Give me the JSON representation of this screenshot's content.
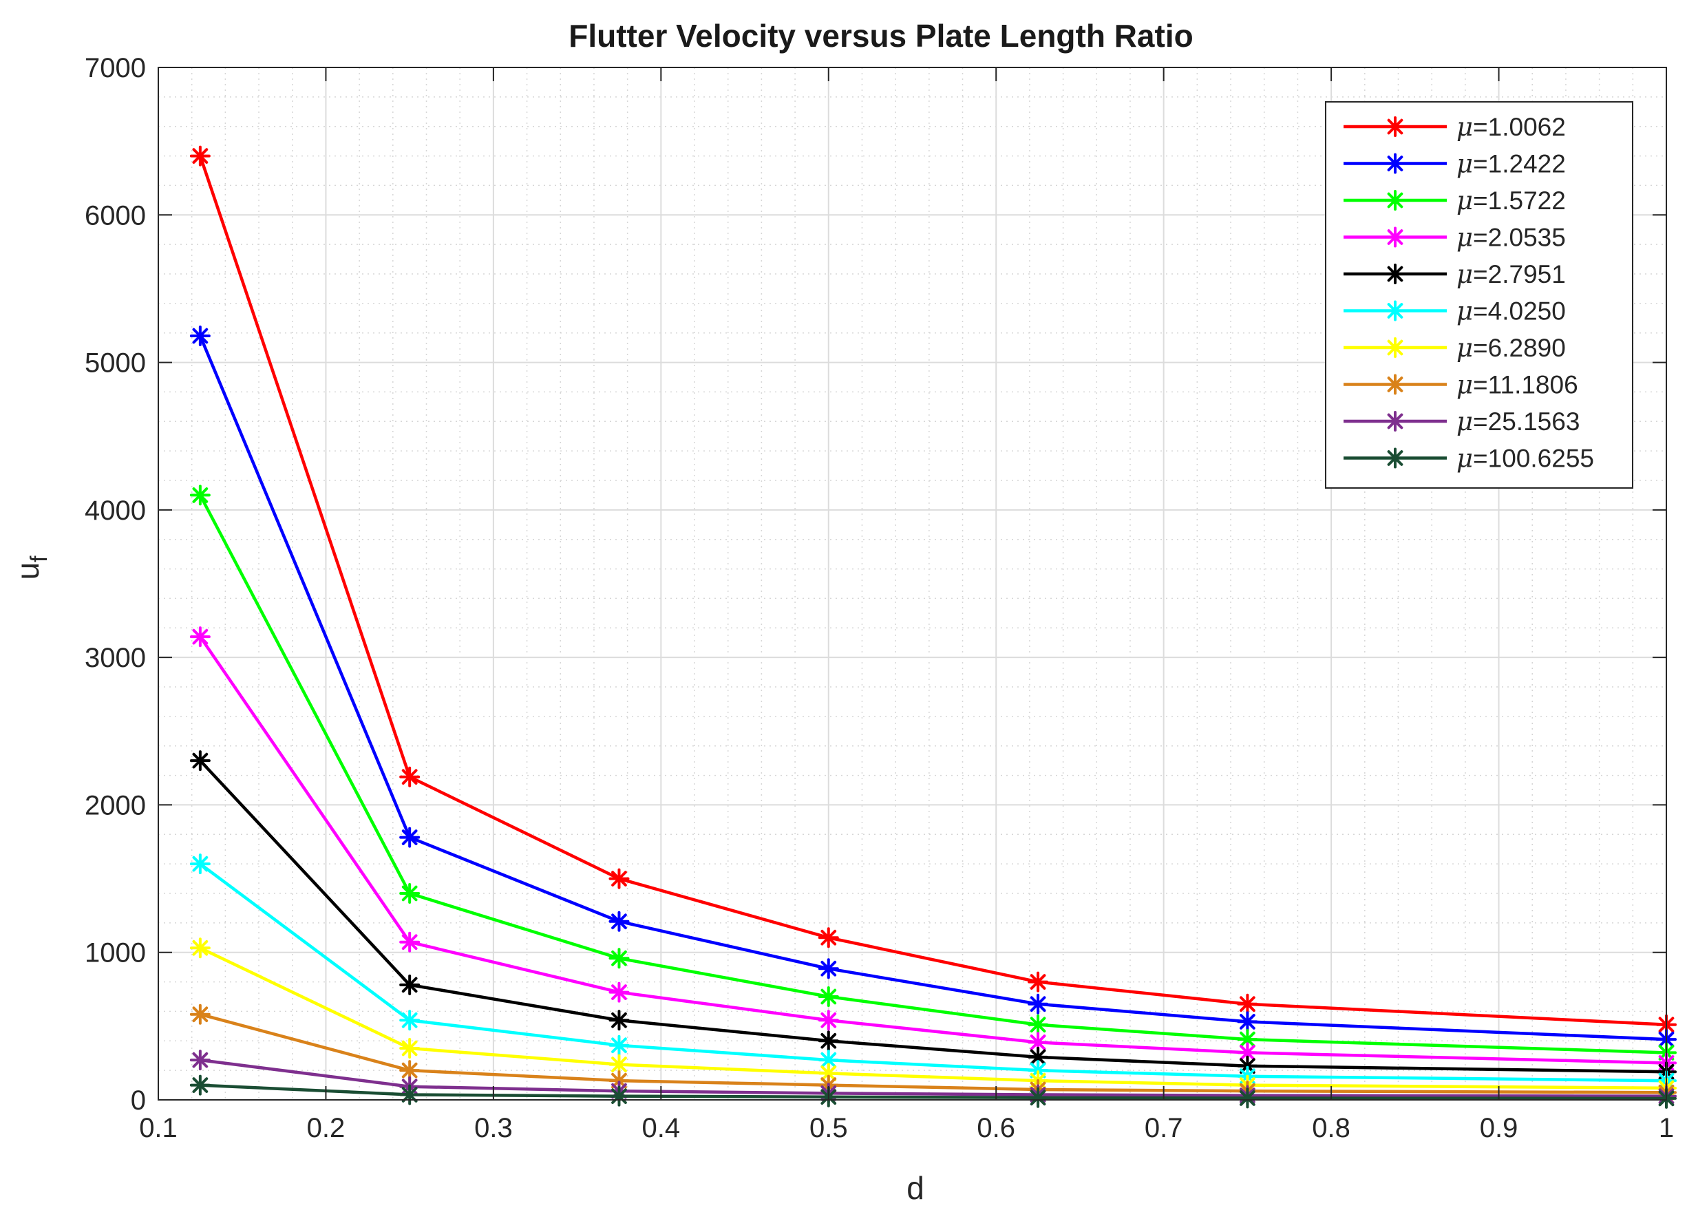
{
  "chart_data": {
    "type": "line",
    "title": "Flutter Velocity versus Plate Length Ratio",
    "xlabel": "d",
    "ylabel": "u",
    "ylabel_subscript": "f",
    "xlim": [
      0.1,
      1
    ],
    "ylim": [
      0,
      7000
    ],
    "xticks": [
      0.1,
      0.2,
      0.3,
      0.4,
      0.5,
      0.6,
      0.7,
      0.8,
      0.9,
      1
    ],
    "xtick_labels": [
      "0.1",
      "0.2",
      "0.3",
      "0.4",
      "0.5",
      "0.6",
      "0.7",
      "0.8",
      "0.9",
      "1"
    ],
    "yticks": [
      0,
      1000,
      2000,
      3000,
      4000,
      5000,
      6000,
      7000
    ],
    "ytick_labels": [
      "0",
      "1000",
      "2000",
      "3000",
      "4000",
      "5000",
      "6000",
      "7000"
    ],
    "grid": true,
    "minor_grid": true,
    "legend_position": "top-right",
    "marker": "asterisk",
    "x": [
      0.125,
      0.25,
      0.375,
      0.5,
      0.625,
      0.75,
      1.0
    ],
    "series": [
      {
        "name": "μ=1.0062",
        "mu_value": "=1.0062",
        "color": "#ff0000",
        "values": [
          6400,
          2190,
          1500,
          1100,
          800,
          650,
          510
        ]
      },
      {
        "name": "μ=1.2422",
        "mu_value": "=1.2422",
        "color": "#0000ff",
        "values": [
          5180,
          1780,
          1210,
          890,
          650,
          530,
          410
        ]
      },
      {
        "name": "μ=1.5722",
        "mu_value": "=1.5722",
        "color": "#00ff00",
        "values": [
          4100,
          1400,
          960,
          700,
          510,
          410,
          320
        ]
      },
      {
        "name": "μ=2.0535",
        "mu_value": "=2.0535",
        "color": "#ff00ff",
        "values": [
          3140,
          1070,
          730,
          540,
          390,
          320,
          250
        ]
      },
      {
        "name": "μ=2.7951",
        "mu_value": "=2.7951",
        "color": "#000000",
        "values": [
          2300,
          780,
          540,
          400,
          290,
          230,
          190
        ]
      },
      {
        "name": "μ=4.0250",
        "mu_value": "=4.0250",
        "color": "#00ffff",
        "values": [
          1600,
          540,
          370,
          270,
          200,
          160,
          130
        ]
      },
      {
        "name": "μ=6.2890",
        "mu_value": "=6.2890",
        "color": "#ffff00",
        "values": [
          1030,
          350,
          240,
          180,
          130,
          100,
          80
        ]
      },
      {
        "name": "μ=11.1806",
        "mu_value": "=11.1806",
        "color": "#d9821a",
        "values": [
          580,
          200,
          130,
          100,
          70,
          60,
          50
        ]
      },
      {
        "name": "μ=25.1563",
        "mu_value": "=25.1563",
        "color": "#7e2f8e",
        "values": [
          270,
          90,
          60,
          45,
          35,
          30,
          25
        ]
      },
      {
        "name": "μ=100.6255",
        "mu_value": "=100.6255",
        "color": "#1a4d33",
        "values": [
          100,
          35,
          25,
          20,
          15,
          12,
          10
        ]
      }
    ]
  }
}
